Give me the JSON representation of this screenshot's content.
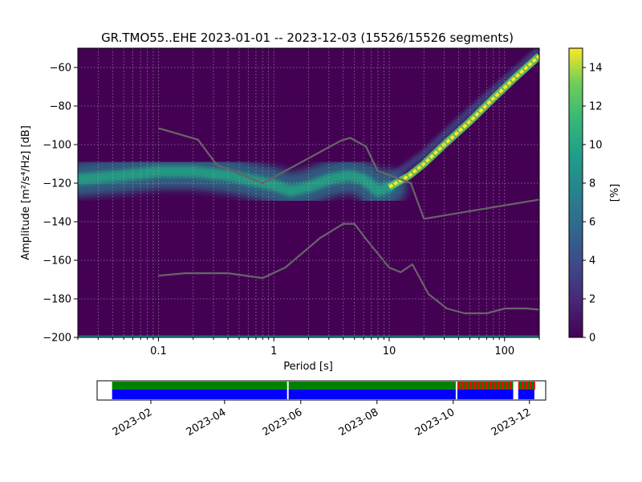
{
  "chart_data": {
    "type": "heatmap",
    "title": "GR.TMO55..EHE   2023-01-01 -- 2023-12-03  (15526/15526 segments)",
    "xlabel": "Period [s]",
    "ylabel": "Amplitude [m²/s⁴/Hz] [dB]",
    "x_scale": "log",
    "xlim": [
      0.02,
      200
    ],
    "ylim": [
      -200,
      -50
    ],
    "x_ticks": [
      {
        "value": 0.1,
        "label": "0.1"
      },
      {
        "value": 1,
        "label": "1"
      },
      {
        "value": 10,
        "label": "10"
      },
      {
        "value": 100,
        "label": "100"
      }
    ],
    "y_ticks": [
      {
        "value": -60,
        "label": "−60"
      },
      {
        "value": -80,
        "label": "−80"
      },
      {
        "value": -100,
        "label": "−100"
      },
      {
        "value": -120,
        "label": "−120"
      },
      {
        "value": -140,
        "label": "−140"
      },
      {
        "value": -160,
        "label": "−160"
      },
      {
        "value": -180,
        "label": "−180"
      },
      {
        "value": -200,
        "label": "−200"
      }
    ],
    "grid": true,
    "colormap": "viridis",
    "colorbar": {
      "label": "[%]",
      "range": [
        0,
        15
      ],
      "ticks": [
        {
          "value": 0,
          "label": "0"
        },
        {
          "value": 2,
          "label": "2"
        },
        {
          "value": 4,
          "label": "4"
        },
        {
          "value": 6,
          "label": "6"
        },
        {
          "value": 8,
          "label": "8"
        },
        {
          "value": 10,
          "label": "10"
        },
        {
          "value": 12,
          "label": "12"
        },
        {
          "value": 14,
          "label": "14"
        }
      ]
    },
    "noise_models": [
      {
        "name": "NHNM",
        "points": [
          [
            0.1,
            -91.5
          ],
          [
            0.22,
            -97.4
          ],
          [
            0.32,
            -110.5
          ],
          [
            0.8,
            -120
          ],
          [
            3.8,
            -98
          ],
          [
            4.6,
            -96.5
          ],
          [
            6.3,
            -101
          ],
          [
            7.9,
            -113.5
          ],
          [
            15.4,
            -120
          ],
          [
            20,
            -138.5
          ],
          [
            200,
            -128.5
          ]
        ]
      },
      {
        "name": "NLNM",
        "points": [
          [
            0.1,
            -168
          ],
          [
            0.17,
            -166.7
          ],
          [
            0.4,
            -166.7
          ],
          [
            0.8,
            -169.2
          ],
          [
            1.26,
            -163.7
          ],
          [
            2.5,
            -148.6
          ],
          [
            4,
            -141.1
          ],
          [
            5,
            -141.1
          ],
          [
            6.3,
            -149
          ],
          [
            10,
            -163.8
          ],
          [
            12.6,
            -166.2
          ],
          [
            15.9,
            -162.1
          ],
          [
            21.9,
            -177.5
          ],
          [
            31.6,
            -185
          ],
          [
            45,
            -187.5
          ],
          [
            70,
            -187.5
          ],
          [
            101,
            -185
          ],
          [
            154,
            -185
          ],
          [
            200,
            -185.6
          ]
        ]
      }
    ],
    "density_ridges": [
      {
        "name": "main-ridge",
        "points": [
          [
            0.02,
            -118
          ],
          [
            0.05,
            -116
          ],
          [
            0.1,
            -114
          ],
          [
            0.2,
            -114
          ],
          [
            0.4,
            -116
          ],
          [
            0.7,
            -119
          ],
          [
            1.0,
            -121
          ],
          [
            1.4,
            -124
          ],
          [
            2.0,
            -122
          ],
          [
            3.0,
            -118
          ],
          [
            4.5,
            -116
          ],
          [
            6.0,
            -118
          ],
          [
            8.0,
            -124
          ],
          [
            10.0,
            -122
          ],
          [
            15.0,
            -116
          ],
          [
            20,
            -110
          ],
          [
            30,
            -100
          ],
          [
            50,
            -88
          ],
          [
            80,
            -76
          ],
          [
            120,
            -66
          ],
          [
            200,
            -54
          ]
        ]
      },
      {
        "name": "upper-branch",
        "points": [
          [
            10,
            -118
          ],
          [
            20,
            -105
          ],
          [
            40,
            -88
          ],
          [
            80,
            -72
          ],
          [
            130,
            -61
          ],
          [
            200,
            -51
          ]
        ]
      },
      {
        "name": "lower-baseline",
        "points": [
          [
            0.02,
            -199.5
          ],
          [
            200,
            -199.5
          ]
        ]
      }
    ]
  },
  "availability": {
    "date_range": [
      "2023-01-01",
      "2023-12-03"
    ],
    "ticks": [
      {
        "date": "2023-02-01",
        "label": "2023-02"
      },
      {
        "date": "2023-04-01",
        "label": "2023-04"
      },
      {
        "date": "2023-06-01",
        "label": "2023-06"
      },
      {
        "date": "2023-08-01",
        "label": "2023-08"
      },
      {
        "date": "2023-10-01",
        "label": "2023-10"
      },
      {
        "date": "2023-12-01",
        "label": "2023-12"
      }
    ],
    "data_gaps": [
      [
        "2023-05-21",
        "2023-05-22"
      ],
      [
        "2023-10-03",
        "2023-10-04"
      ],
      [
        "2023-11-18",
        "2023-11-22"
      ]
    ],
    "colors": {
      "data": "#0000ff",
      "processed": "#008000",
      "flagged": "#ff0000"
    }
  }
}
